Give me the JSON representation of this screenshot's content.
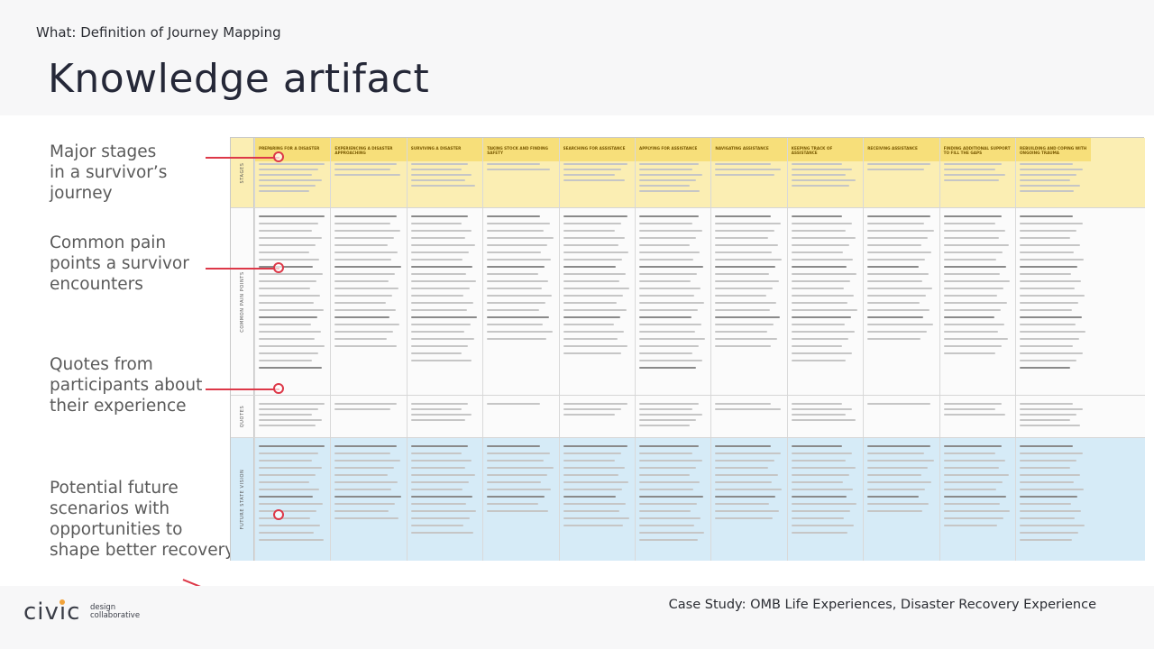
{
  "header": {
    "eyebrow": "What: Definition of Journey Mapping",
    "title": "Knowledge artifact"
  },
  "annotations": [
    {
      "id": "stages",
      "lines": [
        "Major stages",
        "in a survivor’s",
        "journey"
      ]
    },
    {
      "id": "pain",
      "lines": [
        "Common pain",
        "points a survivor",
        "encounters"
      ]
    },
    {
      "id": "quotes",
      "lines": [
        "Quotes from",
        "participants about",
        "their experience"
      ]
    },
    {
      "id": "future",
      "lines": [
        "Potential future",
        "scenarios with",
        "opportunities to",
        "shape better recovery"
      ]
    }
  ],
  "journey_map": {
    "row_labels": [
      "STAGES",
      "COMMON PAIN POINTS",
      "QUOTES",
      "FUTURE STATE VISION"
    ],
    "stages": [
      "Preparing for a disaster",
      "Experiencing a disaster approaching",
      "Surviving a disaster",
      "Taking stock and finding safety",
      "Searching for assistance",
      "Applying for assistance",
      "Navigating assistance",
      "Keeping track of assistance",
      "Receiving assistance",
      "Finding additional support to fill the gaps",
      "Rebuilding and coping with ongoing trauma"
    ],
    "colors": {
      "stages": "#fbeeb3",
      "stage_header": "#f7df7a",
      "future": "#d6ebf7",
      "accent": "#dd3848"
    }
  },
  "footer": {
    "logo": {
      "wordmark": "civic",
      "line1": "design",
      "line2": "collaborative"
    },
    "case_study": "Case Study: OMB Life Experiences, Disaster Recovery Experience"
  }
}
